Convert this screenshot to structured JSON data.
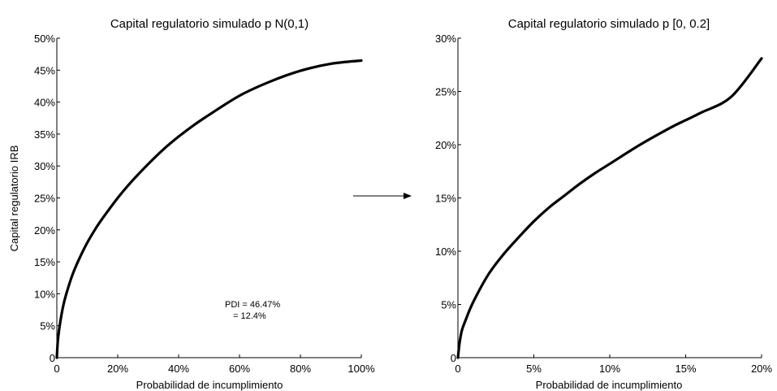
{
  "chart_data": [
    {
      "type": "line",
      "title": "Capital regulatorio simulado p    N(0,1)",
      "xlabel": "Probabilidad de incumplimiento",
      "ylabel": "Capital regulatorio IRB",
      "xlim": [
        0,
        1
      ],
      "ylim": [
        0,
        0.5
      ],
      "grid": false,
      "xticks": [
        "0",
        "20%",
        "40%",
        "60%",
        "80%",
        "100%"
      ],
      "yticks": [
        "0",
        "5%",
        "10%",
        "15%",
        "20%",
        "25%",
        "30%",
        "35%",
        "40%",
        "45%",
        "50%"
      ],
      "annotations": [
        "PDI = 46.47%",
        "= 12.4%"
      ],
      "series": [
        {
          "color": "#000000",
          "x": [
            0,
            0.0025,
            0.005,
            0.01,
            0.02,
            0.03,
            0.05,
            0.07,
            0.1,
            0.13,
            0.15,
            0.2,
            0.25,
            0.3,
            0.35,
            0.4,
            0.45,
            0.5,
            0.6,
            0.7,
            0.8,
            0.9,
            1.0
          ],
          "y": [
            0,
            0.022,
            0.034,
            0.052,
            0.079,
            0.098,
            0.128,
            0.151,
            0.18,
            0.204,
            0.218,
            0.25,
            0.278,
            0.303,
            0.326,
            0.346,
            0.364,
            0.38,
            0.41,
            0.432,
            0.449,
            0.46,
            0.465
          ]
        }
      ]
    },
    {
      "type": "line",
      "title": "Capital regulatorio simulado p    [0, 0.2]",
      "xlabel": "Probabilidad de incumplimiento",
      "ylabel": "",
      "xlim": [
        0,
        0.2
      ],
      "ylim": [
        0,
        0.3
      ],
      "grid": false,
      "xticks": [
        "0",
        "5%",
        "10%",
        "15%",
        "20%"
      ],
      "yticks": [
        "0",
        "5%",
        "10%",
        "15%",
        "20%",
        "25%",
        "30%"
      ],
      "series": [
        {
          "color": "#000000",
          "x": [
            0,
            0.001,
            0.0025,
            0.005,
            0.01,
            0.02,
            0.03,
            0.04,
            0.05,
            0.06,
            0.07,
            0.08,
            0.09,
            0.1,
            0.12,
            0.14,
            0.15,
            0.16,
            0.18,
            0.2
          ],
          "y": [
            0,
            0.013,
            0.025,
            0.035,
            0.052,
            0.078,
            0.097,
            0.113,
            0.128,
            0.141,
            0.152,
            0.163,
            0.173,
            0.182,
            0.2,
            0.216,
            0.223,
            0.23,
            0.245,
            0.281
          ]
        }
      ]
    }
  ],
  "arrow": {
    "visible": true
  }
}
